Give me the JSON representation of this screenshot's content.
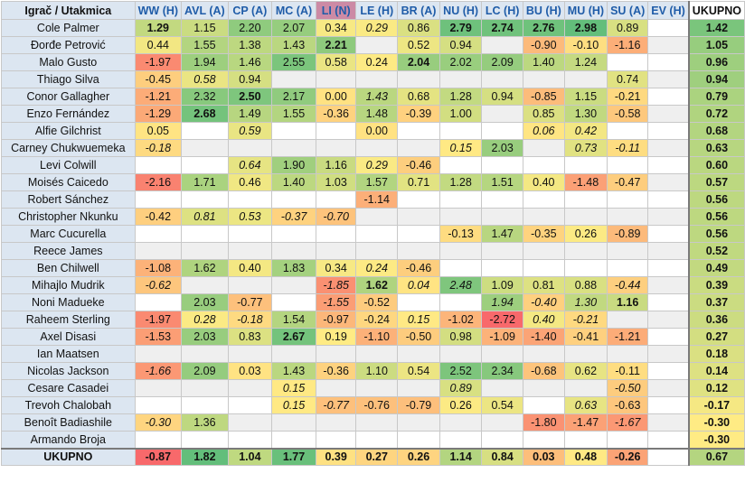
{
  "header": {
    "name_col": "Igrač / Utakmica",
    "teams": [
      "WW (H)",
      "AVL (A)",
      "CP (A)",
      "MC (A)",
      "LI (N)",
      "LE (H)",
      "BR (A)",
      "NU (H)",
      "LC (H)",
      "BU (H)",
      "MU (H)",
      "SU (A)",
      "EV (H)"
    ],
    "total_col": "UKUPNO"
  },
  "rows": [
    {
      "name": "Cole Palmer",
      "cells": [
        {
          "v": "1.29",
          "b": 1
        },
        {
          "v": "1.15"
        },
        {
          "v": "2.20"
        },
        {
          "v": "2.07"
        },
        {
          "v": "0.34"
        },
        {
          "v": "0.29",
          "i": 1
        },
        {
          "v": "0.86"
        },
        {
          "v": "2.79",
          "b": 1
        },
        {
          "v": "2.74",
          "b": 1
        },
        {
          "v": "2.76",
          "b": 1
        },
        {
          "v": "2.98",
          "b": 1
        },
        {
          "v": "0.89"
        },
        {
          "v": ""
        }
      ],
      "total": "1.42"
    },
    {
      "name": "Đorđe Petrović",
      "cells": [
        {
          "v": "0.44"
        },
        {
          "v": "1.55"
        },
        {
          "v": "1.38"
        },
        {
          "v": "1.43"
        },
        {
          "v": "2.21",
          "b": 1
        },
        {
          "v": ""
        },
        {
          "v": "0.52"
        },
        {
          "v": "0.94"
        },
        {
          "v": ""
        },
        {
          "v": "-0.90"
        },
        {
          "v": "-0.10"
        },
        {
          "v": "-1.16"
        },
        {
          "v": ""
        }
      ],
      "total": "1.05"
    },
    {
      "name": "Malo Gusto",
      "cells": [
        {
          "v": "-1.97"
        },
        {
          "v": "1.94"
        },
        {
          "v": "1.46"
        },
        {
          "v": "2.55"
        },
        {
          "v": "0.58"
        },
        {
          "v": "0.24"
        },
        {
          "v": "2.04",
          "b": 1
        },
        {
          "v": "2.02"
        },
        {
          "v": "2.09"
        },
        {
          "v": "1.40"
        },
        {
          "v": "1.24"
        },
        {
          "v": ""
        },
        {
          "v": ""
        }
      ],
      "total": "0.96"
    },
    {
      "name": "Thiago Silva",
      "cells": [
        {
          "v": "-0.45"
        },
        {
          "v": "0.58",
          "i": 1
        },
        {
          "v": "0.94"
        },
        {
          "v": ""
        },
        {
          "v": ""
        },
        {
          "v": ""
        },
        {
          "v": ""
        },
        {
          "v": ""
        },
        {
          "v": ""
        },
        {
          "v": ""
        },
        {
          "v": ""
        },
        {
          "v": "0.74"
        },
        {
          "v": ""
        }
      ],
      "total": "0.94"
    },
    {
      "name": "Conor Gallagher",
      "cells": [
        {
          "v": "-1.21"
        },
        {
          "v": "2.32"
        },
        {
          "v": "2.50",
          "b": 1
        },
        {
          "v": "2.17"
        },
        {
          "v": "0.00"
        },
        {
          "v": "1.43",
          "i": 1
        },
        {
          "v": "0.68"
        },
        {
          "v": "1.28"
        },
        {
          "v": "0.94"
        },
        {
          "v": "-0.85"
        },
        {
          "v": "1.15"
        },
        {
          "v": "-0.21"
        },
        {
          "v": ""
        }
      ],
      "total": "0.79"
    },
    {
      "name": "Enzo Fernández",
      "cells": [
        {
          "v": "-1.29"
        },
        {
          "v": "2.68",
          "b": 1
        },
        {
          "v": "1.49"
        },
        {
          "v": "1.55"
        },
        {
          "v": "-0.36"
        },
        {
          "v": "1.48"
        },
        {
          "v": "-0.39"
        },
        {
          "v": "1.00"
        },
        {
          "v": ""
        },
        {
          "v": "0.85"
        },
        {
          "v": "1.30"
        },
        {
          "v": "-0.58"
        },
        {
          "v": ""
        }
      ],
      "total": "0.72"
    },
    {
      "name": "Alfie Gilchrist",
      "cells": [
        {
          "v": "0.05"
        },
        {
          "v": ""
        },
        {
          "v": "0.59",
          "i": 1
        },
        {
          "v": ""
        },
        {
          "v": ""
        },
        {
          "v": "0.00"
        },
        {
          "v": ""
        },
        {
          "v": ""
        },
        {
          "v": ""
        },
        {
          "v": "0.06",
          "i": 1
        },
        {
          "v": "0.42",
          "i": 1
        },
        {
          "v": ""
        },
        {
          "v": ""
        }
      ],
      "total": "0.68"
    },
    {
      "name": "Carney Chukwuemeka",
      "cells": [
        {
          "v": "-0.18",
          "i": 1
        },
        {
          "v": ""
        },
        {
          "v": ""
        },
        {
          "v": ""
        },
        {
          "v": ""
        },
        {
          "v": ""
        },
        {
          "v": ""
        },
        {
          "v": "0.15",
          "i": 1
        },
        {
          "v": "2.03"
        },
        {
          "v": ""
        },
        {
          "v": "0.73",
          "i": 1
        },
        {
          "v": "-0.11",
          "i": 1
        },
        {
          "v": ""
        }
      ],
      "total": "0.63"
    },
    {
      "name": "Levi Colwill",
      "cells": [
        {
          "v": ""
        },
        {
          "v": ""
        },
        {
          "v": "0.64",
          "i": 1
        },
        {
          "v": "1.90"
        },
        {
          "v": "1.16"
        },
        {
          "v": "0.29",
          "i": 1
        },
        {
          "v": "-0.46"
        },
        {
          "v": ""
        },
        {
          "v": ""
        },
        {
          "v": ""
        },
        {
          "v": ""
        },
        {
          "v": ""
        },
        {
          "v": ""
        }
      ],
      "total": "0.60"
    },
    {
      "name": "Moisés Caicedo",
      "cells": [
        {
          "v": "-2.16"
        },
        {
          "v": "1.71"
        },
        {
          "v": "0.46"
        },
        {
          "v": "1.40"
        },
        {
          "v": "1.03"
        },
        {
          "v": "1.57"
        },
        {
          "v": "0.71"
        },
        {
          "v": "1.28"
        },
        {
          "v": "1.51"
        },
        {
          "v": "0.40"
        },
        {
          "v": "-1.48"
        },
        {
          "v": "-0.47"
        },
        {
          "v": ""
        }
      ],
      "total": "0.57"
    },
    {
      "name": "Robert Sánchez",
      "cells": [
        {
          "v": ""
        },
        {
          "v": ""
        },
        {
          "v": ""
        },
        {
          "v": ""
        },
        {
          "v": ""
        },
        {
          "v": "-1.14"
        },
        {
          "v": ""
        },
        {
          "v": ""
        },
        {
          "v": ""
        },
        {
          "v": ""
        },
        {
          "v": ""
        },
        {
          "v": ""
        },
        {
          "v": ""
        }
      ],
      "total": "0.56"
    },
    {
      "name": "Christopher Nkunku",
      "cells": [
        {
          "v": "-0.42"
        },
        {
          "v": "0.81",
          "i": 1
        },
        {
          "v": "0.53",
          "i": 1
        },
        {
          "v": "-0.37",
          "i": 1
        },
        {
          "v": "-0.70",
          "i": 1
        },
        {
          "v": ""
        },
        {
          "v": ""
        },
        {
          "v": ""
        },
        {
          "v": ""
        },
        {
          "v": ""
        },
        {
          "v": ""
        },
        {
          "v": ""
        },
        {
          "v": ""
        }
      ],
      "total": "0.56"
    },
    {
      "name": "Marc Cucurella",
      "cells": [
        {
          "v": ""
        },
        {
          "v": ""
        },
        {
          "v": ""
        },
        {
          "v": ""
        },
        {
          "v": ""
        },
        {
          "v": ""
        },
        {
          "v": ""
        },
        {
          "v": "-0.13"
        },
        {
          "v": "1.47"
        },
        {
          "v": "-0.35"
        },
        {
          "v": "0.26"
        },
        {
          "v": "-0.89"
        },
        {
          "v": ""
        }
      ],
      "total": "0.56"
    },
    {
      "name": "Reece James",
      "cells": [
        {
          "v": ""
        },
        {
          "v": ""
        },
        {
          "v": ""
        },
        {
          "v": ""
        },
        {
          "v": ""
        },
        {
          "v": ""
        },
        {
          "v": ""
        },
        {
          "v": ""
        },
        {
          "v": ""
        },
        {
          "v": ""
        },
        {
          "v": ""
        },
        {
          "v": ""
        },
        {
          "v": ""
        }
      ],
      "total": "0.52"
    },
    {
      "name": "Ben Chilwell",
      "cells": [
        {
          "v": "-1.08"
        },
        {
          "v": "1.62"
        },
        {
          "v": "0.40"
        },
        {
          "v": "1.83"
        },
        {
          "v": "0.34"
        },
        {
          "v": "0.24",
          "i": 1
        },
        {
          "v": "-0.46"
        },
        {
          "v": ""
        },
        {
          "v": ""
        },
        {
          "v": ""
        },
        {
          "v": ""
        },
        {
          "v": ""
        },
        {
          "v": ""
        }
      ],
      "total": "0.49"
    },
    {
      "name": "Mihajlo Mudrik",
      "cells": [
        {
          "v": "-0.62",
          "i": 1
        },
        {
          "v": ""
        },
        {
          "v": ""
        },
        {
          "v": ""
        },
        {
          "v": "-1.85",
          "i": 1
        },
        {
          "v": "1.62",
          "b": 1
        },
        {
          "v": "0.04",
          "i": 1
        },
        {
          "v": "2.48",
          "i": 1
        },
        {
          "v": "1.09"
        },
        {
          "v": "0.81"
        },
        {
          "v": "0.88"
        },
        {
          "v": "-0.44",
          "i": 1
        },
        {
          "v": ""
        }
      ],
      "total": "0.39"
    },
    {
      "name": "Noni Madueke",
      "cells": [
        {
          "v": ""
        },
        {
          "v": "2.03"
        },
        {
          "v": "-0.77"
        },
        {
          "v": ""
        },
        {
          "v": "-1.55",
          "i": 1
        },
        {
          "v": "-0.52"
        },
        {
          "v": ""
        },
        {
          "v": ""
        },
        {
          "v": "1.94",
          "i": 1
        },
        {
          "v": "-0.40",
          "i": 1
        },
        {
          "v": "1.30",
          "i": 1
        },
        {
          "v": "1.16",
          "b": 1
        },
        {
          "v": ""
        }
      ],
      "total": "0.37"
    },
    {
      "name": "Raheem Sterling",
      "cells": [
        {
          "v": "-1.97"
        },
        {
          "v": "0.28",
          "i": 1
        },
        {
          "v": "-0.18",
          "i": 1
        },
        {
          "v": "1.54"
        },
        {
          "v": "-0.97"
        },
        {
          "v": "-0.24"
        },
        {
          "v": "0.15",
          "i": 1
        },
        {
          "v": "-1.02"
        },
        {
          "v": "-2.72"
        },
        {
          "v": "0.40",
          "i": 1
        },
        {
          "v": "-0.21",
          "i": 1
        },
        {
          "v": ""
        },
        {
          "v": ""
        }
      ],
      "total": "0.36"
    },
    {
      "name": "Axel Disasi",
      "cells": [
        {
          "v": "-1.53"
        },
        {
          "v": "2.03"
        },
        {
          "v": "0.83"
        },
        {
          "v": "2.67",
          "b": 1
        },
        {
          "v": "0.19"
        },
        {
          "v": "-1.10"
        },
        {
          "v": "-0.50"
        },
        {
          "v": "0.98"
        },
        {
          "v": "-1.09"
        },
        {
          "v": "-1.40"
        },
        {
          "v": "-0.41"
        },
        {
          "v": "-1.21"
        },
        {
          "v": ""
        }
      ],
      "total": "0.27"
    },
    {
      "name": "Ian Maatsen",
      "cells": [
        {
          "v": ""
        },
        {
          "v": ""
        },
        {
          "v": ""
        },
        {
          "v": ""
        },
        {
          "v": ""
        },
        {
          "v": ""
        },
        {
          "v": ""
        },
        {
          "v": ""
        },
        {
          "v": ""
        },
        {
          "v": ""
        },
        {
          "v": ""
        },
        {
          "v": ""
        },
        {
          "v": ""
        }
      ],
      "total": "0.18"
    },
    {
      "name": "Nicolas Jackson",
      "cells": [
        {
          "v": "-1.66",
          "i": 1
        },
        {
          "v": "2.09"
        },
        {
          "v": "0.03"
        },
        {
          "v": "1.43"
        },
        {
          "v": "-0.36"
        },
        {
          "v": "1.10"
        },
        {
          "v": "0.54"
        },
        {
          "v": "2.52"
        },
        {
          "v": "2.34"
        },
        {
          "v": "-0.68"
        },
        {
          "v": "0.62"
        },
        {
          "v": "-0.11"
        },
        {
          "v": ""
        }
      ],
      "total": "0.14"
    },
    {
      "name": "Cesare Casadei",
      "cells": [
        {
          "v": ""
        },
        {
          "v": ""
        },
        {
          "v": ""
        },
        {
          "v": "0.15",
          "i": 1
        },
        {
          "v": ""
        },
        {
          "v": ""
        },
        {
          "v": ""
        },
        {
          "v": "0.89",
          "i": 1
        },
        {
          "v": ""
        },
        {
          "v": ""
        },
        {
          "v": ""
        },
        {
          "v": "-0.50",
          "i": 1
        },
        {
          "v": ""
        }
      ],
      "total": "0.12"
    },
    {
      "name": "Trevoh Chalobah",
      "cells": [
        {
          "v": ""
        },
        {
          "v": ""
        },
        {
          "v": ""
        },
        {
          "v": "0.15",
          "i": 1
        },
        {
          "v": "-0.77",
          "i": 1
        },
        {
          "v": "-0.76"
        },
        {
          "v": "-0.79"
        },
        {
          "v": "0.26"
        },
        {
          "v": "0.54"
        },
        {
          "v": ""
        },
        {
          "v": "0.63",
          "i": 1
        },
        {
          "v": "-0.63"
        },
        {
          "v": ""
        }
      ],
      "total": "-0.17"
    },
    {
      "name": "Benoît Badiashile",
      "cells": [
        {
          "v": "-0.30",
          "i": 1
        },
        {
          "v": "1.36"
        },
        {
          "v": ""
        },
        {
          "v": ""
        },
        {
          "v": ""
        },
        {
          "v": ""
        },
        {
          "v": ""
        },
        {
          "v": ""
        },
        {
          "v": ""
        },
        {
          "v": "-1.80"
        },
        {
          "v": "-1.47"
        },
        {
          "v": "-1.67",
          "i": 1
        },
        {
          "v": ""
        }
      ],
      "total": "-0.30"
    },
    {
      "name": "Armando Broja",
      "cells": [
        {
          "v": ""
        },
        {
          "v": ""
        },
        {
          "v": ""
        },
        {
          "v": ""
        },
        {
          "v": ""
        },
        {
          "v": ""
        },
        {
          "v": ""
        },
        {
          "v": ""
        },
        {
          "v": ""
        },
        {
          "v": ""
        },
        {
          "v": ""
        },
        {
          "v": ""
        },
        {
          "v": ""
        }
      ],
      "total": "-0.30"
    }
  ],
  "summary": {
    "name": "UKUPNO",
    "cells": [
      "-0.87",
      "1.82",
      "1.04",
      "1.77",
      "0.39",
      "0.27",
      "0.26",
      "1.14",
      "0.84",
      "0.03",
      "0.48",
      "-0.26",
      ""
    ],
    "total": "0.67"
  },
  "colors": {
    "header_bg": "#dce6f1",
    "header_text": "#1f5ca8",
    "neutral_header_bg": "#cc8aa5",
    "scale_low": "#f8696b",
    "scale_mid": "#ffeb84",
    "scale_high": "#63be7b"
  }
}
